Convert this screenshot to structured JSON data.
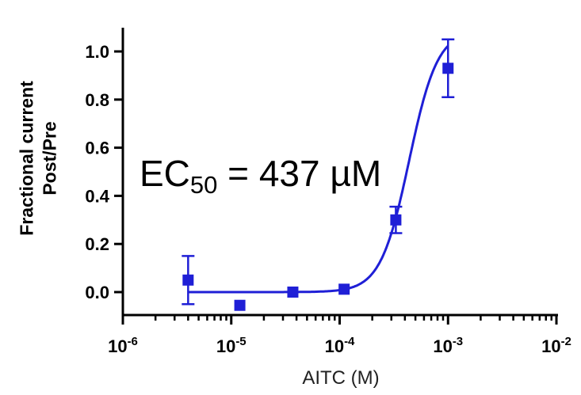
{
  "chart_data": {
    "type": "scatter",
    "ylabel_line1": "Fractional current",
    "ylabel_line2": "Post/Pre",
    "xlabel": "AITC (M)",
    "annotation": {
      "prefix": "EC",
      "subscript": "50",
      "suffix": " = 437 µM"
    },
    "x_scale": "log",
    "xlim": [
      1e-06,
      0.01
    ],
    "ylim": [
      -0.09,
      1.1
    ],
    "x_ticks": [
      {
        "base": "10",
        "exp": "-6"
      },
      {
        "base": "10",
        "exp": "-5"
      },
      {
        "base": "10",
        "exp": "-4"
      },
      {
        "base": "10",
        "exp": "-3"
      },
      {
        "base": "10",
        "exp": "-2"
      }
    ],
    "y_ticks": [
      "0.0",
      "0.2",
      "0.4",
      "0.6",
      "0.8",
      "1.0"
    ],
    "series": [
      {
        "x": [
          4e-06,
          1.2e-05,
          3.7e-05,
          0.00011,
          0.00033,
          0.001
        ],
        "y": [
          0.05,
          -0.055,
          0.0,
          0.012,
          0.3,
          0.93
        ],
        "err": [
          0.1,
          0.0,
          0.0,
          0.0,
          0.055,
          0.12
        ]
      }
    ],
    "fit": {
      "bottom": 0.0,
      "top": 1.09,
      "ec50": 0.000437,
      "hill": 3.3
    },
    "grid": false,
    "color": "#1f1fd6"
  }
}
